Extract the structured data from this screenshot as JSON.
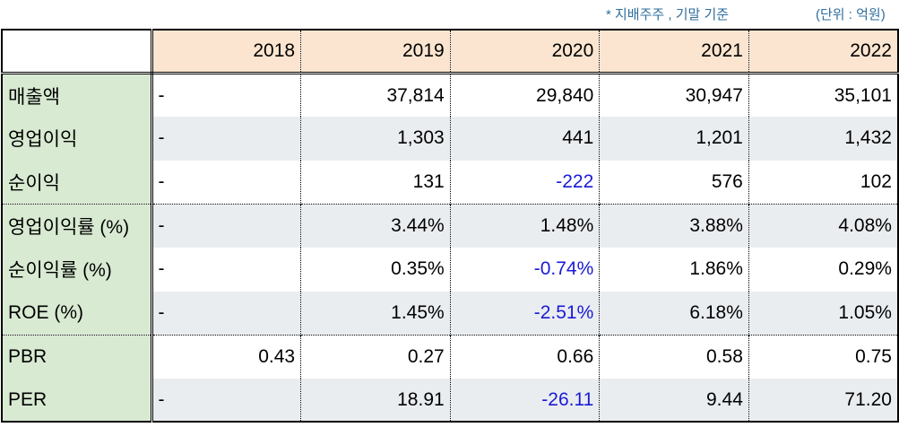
{
  "notes": {
    "basis": "* 지배주주 , 기말 기준",
    "unit": "(단위 : 억원)"
  },
  "table": {
    "years": [
      "2018",
      "2019",
      "2020",
      "2021",
      "2022"
    ],
    "rows": [
      {
        "label": "매출액",
        "values": [
          "-",
          "37,814",
          "29,840",
          "30,947",
          "35,101"
        ]
      },
      {
        "label": "영업이익",
        "values": [
          "-",
          "1,303",
          "441",
          "1,201",
          "1,432"
        ]
      },
      {
        "label": "순이익",
        "values": [
          "-",
          "131",
          "-222",
          "576",
          "102"
        ]
      },
      {
        "label": "영업이익률 (%)",
        "values": [
          "-",
          "3.44%",
          "1.48%",
          "3.88%",
          "4.08%"
        ]
      },
      {
        "label": "순이익률 (%)",
        "values": [
          "-",
          "0.35%",
          "-0.74%",
          "1.86%",
          "0.29%"
        ]
      },
      {
        "label": "ROE (%)",
        "values": [
          "-",
          "1.45%",
          "-2.51%",
          "6.18%",
          "1.05%"
        ]
      },
      {
        "label": "PBR",
        "values": [
          "0.43",
          "0.27",
          "0.66",
          "0.58",
          "0.75"
        ]
      },
      {
        "label": "PER",
        "values": [
          "-",
          "18.91",
          "-26.11",
          "9.44",
          "71.20"
        ]
      }
    ]
  },
  "colors": {
    "header_bg": "#fbe5d0",
    "label_bg": "#d8ead2",
    "shade_bg": "#eaedf0",
    "negative": "#1a1ad6",
    "note": "#2f6f9f"
  }
}
